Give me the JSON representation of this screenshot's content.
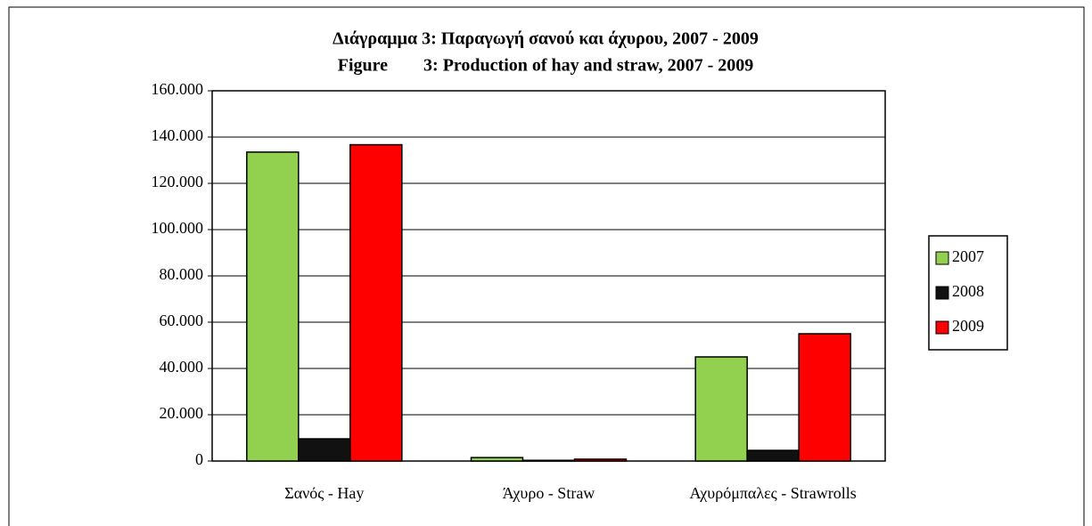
{
  "chart_data": {
    "type": "bar",
    "title": [
      "Διάγραμμα 3: Παραγωγή σανού και άχυρου, 2007 - 2009",
      "Figure        3: Production of hay and straw, 2007 - 2009"
    ],
    "categories": [
      "Σανός - Hay",
      "Άχυρο - Straw",
      "Αχυρόμπαλες - Strawrolls"
    ],
    "series": [
      {
        "name": "2007",
        "color": "#92d050",
        "values": [
          133500,
          1500,
          45000
        ]
      },
      {
        "name": "2008",
        "color": "#111111",
        "values": [
          9600,
          300,
          4600
        ]
      },
      {
        "name": "2009",
        "color": "#ff0000",
        "values": [
          136700,
          800,
          55000
        ]
      }
    ],
    "ylim": [
      0,
      160000
    ],
    "yticks": [
      0,
      {
        "value": 20000,
        "label": "20.000"
      },
      {
        "value": 40000,
        "label": "40.000"
      },
      {
        "value": 60000,
        "label": "60.000"
      },
      {
        "value": 80000,
        "label": "80.000"
      },
      {
        "value": 100000,
        "label": "100.000"
      },
      {
        "value": 120000,
        "label": "120.000"
      },
      {
        "value": 140000,
        "label": "140.000"
      },
      {
        "value": 160000,
        "label": "160.000"
      }
    ],
    "grid": true,
    "legend": "right"
  }
}
